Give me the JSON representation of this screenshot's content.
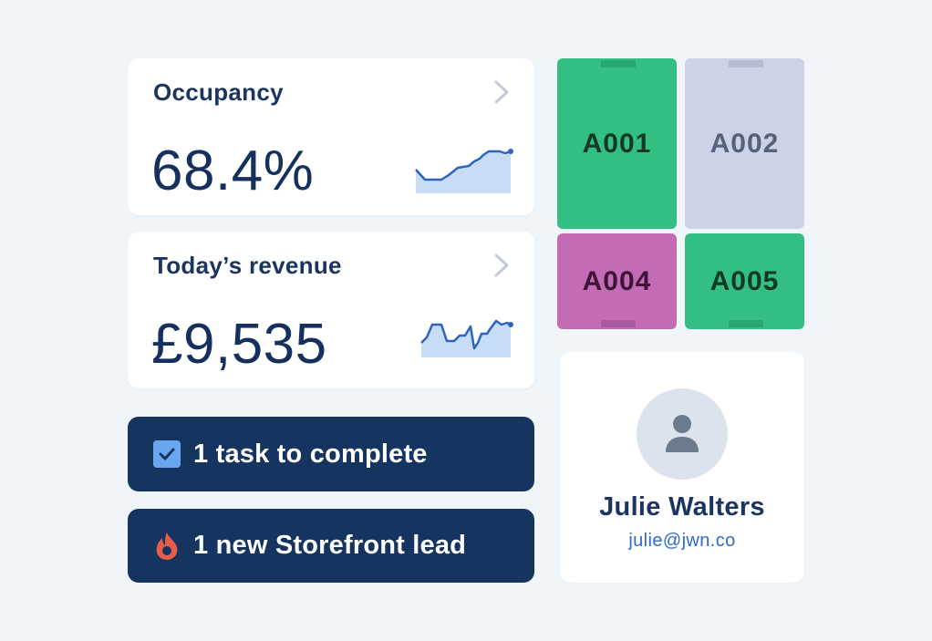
{
  "occupancy": {
    "title": "Occupancy",
    "value": "68.4%",
    "trend_icon": "chevron-right-icon"
  },
  "revenue": {
    "title": "Today’s revenue",
    "value": "£9,535",
    "trend_icon": "chevron-right-icon"
  },
  "alerts": {
    "task": {
      "text": "1 task to complete",
      "icon": "checkbox-icon"
    },
    "lead": {
      "text": "1 new Storefront lead",
      "icon": "flame-icon"
    }
  },
  "units": [
    {
      "id": "A001",
      "status_color": "#33be82"
    },
    {
      "id": "A002",
      "status_color": "#cdd2e6"
    },
    {
      "id": "A004",
      "status_color": "#c36cb5"
    },
    {
      "id": "A005",
      "status_color": "#33be82"
    }
  ],
  "profile": {
    "name": "Julie Walters",
    "email": "julie@jwn.co",
    "avatar_icon": "user-icon"
  },
  "colors": {
    "navy": "#163460",
    "accent_blue": "#2f6bc6",
    "sparkline_fill": "#c9dcf5",
    "flame": "#e85c4a"
  }
}
